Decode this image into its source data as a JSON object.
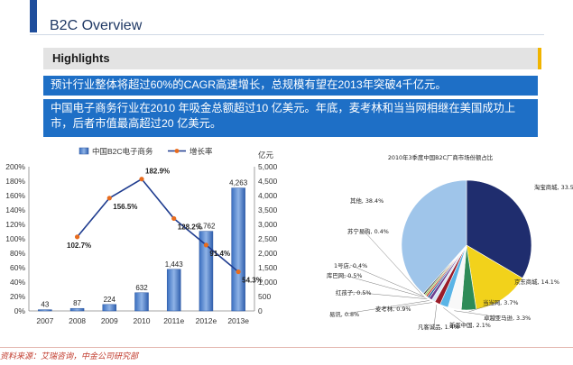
{
  "header": {
    "title": "B2C Overview"
  },
  "highlights": {
    "heading": "Highlights",
    "points": [
      "预计行业整体将超过60%的CAGR高速增长，总规模有望在2013年突破4千亿元。",
      "中国电子商务行业在2010 年吸金总额超过10 亿美元。年底，麦考林和当当网相继在美国成功上市，后者市值最高超过20 亿美元。"
    ]
  },
  "colors": {
    "accent": "#1f4e9c",
    "box": "#1e6fc6",
    "highlight_accent": "#f0b400",
    "line": "#1f3c8f",
    "marker": "#e86c1e"
  },
  "source": "资料来源：艾瑞咨询，中金公司研究部",
  "chart_data": [
    {
      "type": "bar",
      "categories": [
        "2007",
        "2008",
        "2009",
        "2010",
        "2011e",
        "2012e",
        "2013e"
      ],
      "series": [
        {
          "name": "中国B2C电子商务",
          "axis": "right",
          "values": [
            43,
            87,
            224,
            632,
            1443,
            2762,
            4263
          ],
          "value_labels": [
            "43",
            "87",
            "224",
            "632",
            "1,443",
            "2,762",
            "4,263"
          ]
        },
        {
          "name": "增长率",
          "type": "line",
          "axis": "left",
          "values": [
            null,
            102.7,
            156.5,
            182.9,
            128.2,
            91.4,
            54.3
          ],
          "value_labels": [
            "",
            "102.7%",
            "156.5%",
            "182.9%",
            "128.2%",
            "91.4%",
            "54.3%"
          ]
        }
      ],
      "right_axis_unit": "亿元",
      "left_ylim": [
        0,
        200
      ],
      "left_ticks": [
        "0%",
        "20%",
        "40%",
        "60%",
        "80%",
        "100%",
        "120%",
        "140%",
        "160%",
        "180%",
        "200%"
      ],
      "right_ylim": [
        0,
        5000
      ],
      "right_ticks": [
        "0",
        "500",
        "1,000",
        "1,500",
        "2,000",
        "2,500",
        "3,000",
        "3,500",
        "4,000",
        "4,500",
        "5,000"
      ],
      "legend_position": "top",
      "grid": false
    },
    {
      "type": "pie",
      "title": "2010年3季度中国B2C厂商市场份额占比",
      "slices": [
        {
          "label": "淘宝商城",
          "value": 33.5,
          "value_label": "33.5%",
          "color": "#1f2d6e"
        },
        {
          "label": "京东商城",
          "value": 14.1,
          "value_label": "14.1%",
          "color": "#f2d21b"
        },
        {
          "label": "当当网",
          "value": 3.7,
          "value_label": "3.7%",
          "color": "#2e8b57"
        },
        {
          "label": "卓越亚马逊",
          "value": 3.3,
          "value_label": "3.3%",
          "color": "#f8f8f8"
        },
        {
          "label": "新蛋中国",
          "value": 2.1,
          "value_label": "2.1%",
          "color": "#5ab4e6"
        },
        {
          "label": "凡客诚品",
          "value": 1.4,
          "value_label": "1.4%",
          "color": "#9a1c28"
        },
        {
          "label": "麦考林",
          "value": 0.9,
          "value_label": "0.9%",
          "color": "#d7e7f5"
        },
        {
          "label": "易讯",
          "value": 0.8,
          "value_label": "0.8%",
          "color": "#6f3f8f"
        },
        {
          "label": "红孩子",
          "value": 0.5,
          "value_label": "0.5%",
          "color": "#1c5c9c"
        },
        {
          "label": "库巴网",
          "value": 0.5,
          "value_label": "0.5%",
          "color": "#c84e3a"
        },
        {
          "label": "1号店",
          "value": 0.4,
          "value_label": "0.4%",
          "color": "#8dc63f"
        },
        {
          "label": "苏宁易购",
          "value": 0.4,
          "value_label": "0.4%",
          "color": "#3a3a3a"
        },
        {
          "label": "其他",
          "value": 38.4,
          "value_label": "38.4%",
          "color": "#9fc5ea"
        }
      ]
    }
  ]
}
